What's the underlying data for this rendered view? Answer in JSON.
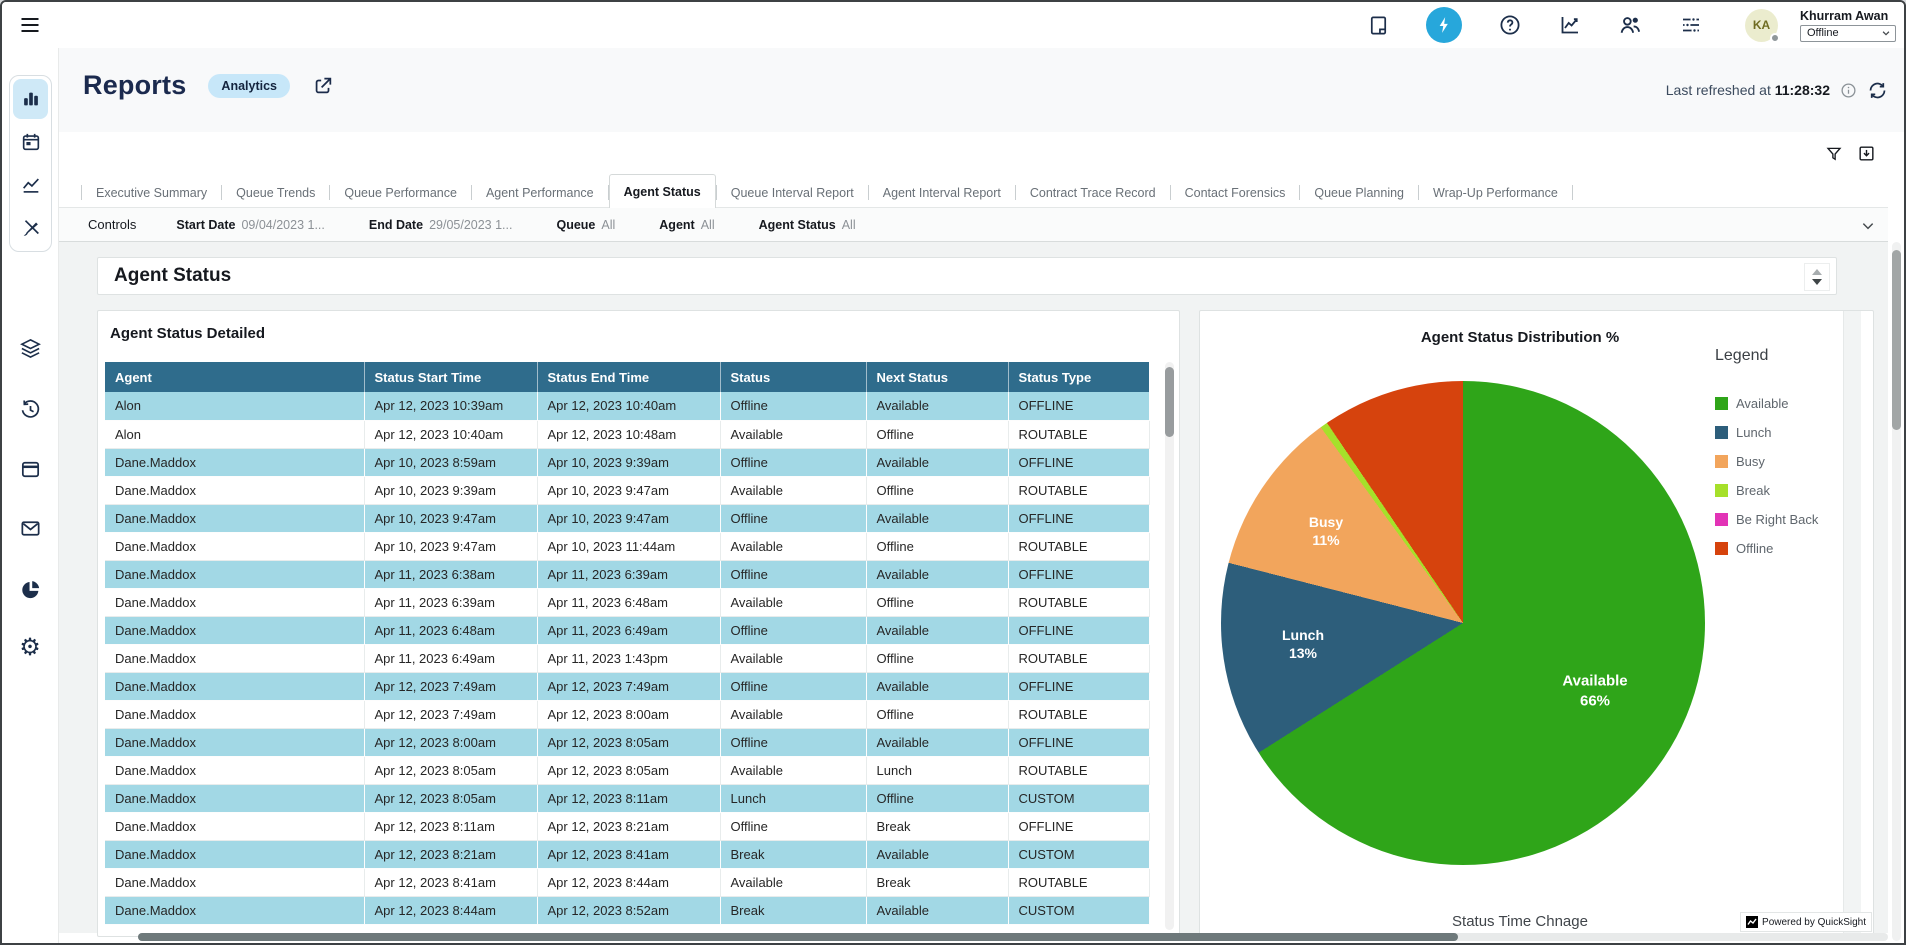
{
  "topbar": {
    "icons": [
      "notes",
      "flash",
      "help",
      "metrics",
      "users",
      "settings-sliders"
    ],
    "user": {
      "initials": "KA",
      "name": "Khurram Awan",
      "status": "Offline"
    }
  },
  "sidebar": {
    "icons": [
      "bar-chart",
      "calendar",
      "line-chart",
      "design-tools",
      "layers",
      "history",
      "browser-window",
      "mail",
      "pie-chart",
      "settings-gear"
    ],
    "active_icon": "bar-chart"
  },
  "header": {
    "title": "Reports",
    "badge": "Analytics",
    "last_refreshed_label": "Last refreshed at",
    "last_refreshed_time": "11:28:32"
  },
  "tabs": {
    "active_index": 4,
    "items": [
      "Executive Summary",
      "Queue Trends",
      "Queue Performance",
      "Agent Performance",
      "Agent Status",
      "Queue Interval Report",
      "Agent Interval Report",
      "Contract Trace Record",
      "Contact Forensics",
      "Queue Planning",
      "Wrap-Up Performance"
    ]
  },
  "controls": {
    "label": "Controls",
    "filters": [
      {
        "label": "Start Date",
        "value": "09/04/2023 1..."
      },
      {
        "label": "End Date",
        "value": "29/05/2023 1..."
      },
      {
        "label": "Queue",
        "value": "All"
      },
      {
        "label": "Agent",
        "value": "All"
      },
      {
        "label": "Agent Status",
        "value": "All"
      }
    ]
  },
  "section": {
    "title": "Agent Status"
  },
  "table_panel": {
    "title": "Agent Status Detailed",
    "columns": [
      "Agent",
      "Status Start Time",
      "Status End Time",
      "Status",
      "Next Status",
      "Status Type"
    ],
    "rows": [
      [
        "Alon",
        "Apr 12, 2023 10:39am",
        "Apr 12, 2023 10:40am",
        "Offline",
        "Available",
        "OFFLINE"
      ],
      [
        "Alon",
        "Apr 12, 2023 10:40am",
        "Apr 12, 2023 10:48am",
        "Available",
        "Offline",
        "ROUTABLE"
      ],
      [
        "Dane.Maddox",
        "Apr 10, 2023 8:59am",
        "Apr 10, 2023 9:39am",
        "Offline",
        "Available",
        "OFFLINE"
      ],
      [
        "Dane.Maddox",
        "Apr 10, 2023 9:39am",
        "Apr 10, 2023 9:47am",
        "Available",
        "Offline",
        "ROUTABLE"
      ],
      [
        "Dane.Maddox",
        "Apr 10, 2023 9:47am",
        "Apr 10, 2023 9:47am",
        "Offline",
        "Available",
        "OFFLINE"
      ],
      [
        "Dane.Maddox",
        "Apr 10, 2023 9:47am",
        "Apr 10, 2023 11:44am",
        "Available",
        "Offline",
        "ROUTABLE"
      ],
      [
        "Dane.Maddox",
        "Apr 11, 2023 6:38am",
        "Apr 11, 2023 6:39am",
        "Offline",
        "Available",
        "OFFLINE"
      ],
      [
        "Dane.Maddox",
        "Apr 11, 2023 6:39am",
        "Apr 11, 2023 6:48am",
        "Available",
        "Offline",
        "ROUTABLE"
      ],
      [
        "Dane.Maddox",
        "Apr 11, 2023 6:48am",
        "Apr 11, 2023 6:49am",
        "Offline",
        "Available",
        "OFFLINE"
      ],
      [
        "Dane.Maddox",
        "Apr 11, 2023 6:49am",
        "Apr 11, 2023 1:43pm",
        "Available",
        "Offline",
        "ROUTABLE"
      ],
      [
        "Dane.Maddox",
        "Apr 12, 2023 7:49am",
        "Apr 12, 2023 7:49am",
        "Offline",
        "Available",
        "OFFLINE"
      ],
      [
        "Dane.Maddox",
        "Apr 12, 2023 7:49am",
        "Apr 12, 2023 8:00am",
        "Available",
        "Offline",
        "ROUTABLE"
      ],
      [
        "Dane.Maddox",
        "Apr 12, 2023 8:00am",
        "Apr 12, 2023 8:05am",
        "Offline",
        "Available",
        "OFFLINE"
      ],
      [
        "Dane.Maddox",
        "Apr 12, 2023 8:05am",
        "Apr 12, 2023 8:05am",
        "Available",
        "Lunch",
        "ROUTABLE"
      ],
      [
        "Dane.Maddox",
        "Apr 12, 2023 8:05am",
        "Apr 12, 2023 8:11am",
        "Lunch",
        "Offline",
        "CUSTOM"
      ],
      [
        "Dane.Maddox",
        "Apr 12, 2023 8:11am",
        "Apr 12, 2023 8:21am",
        "Offline",
        "Break",
        "OFFLINE"
      ],
      [
        "Dane.Maddox",
        "Apr 12, 2023 8:21am",
        "Apr 12, 2023 8:41am",
        "Break",
        "Available",
        "CUSTOM"
      ],
      [
        "Dane.Maddox",
        "Apr 12, 2023 8:41am",
        "Apr 12, 2023 8:44am",
        "Available",
        "Break",
        "ROUTABLE"
      ],
      [
        "Dane.Maddox",
        "Apr 12, 2023 8:44am",
        "Apr 12, 2023 8:52am",
        "Break",
        "Available",
        "CUSTOM"
      ]
    ]
  },
  "chart_data": {
    "type": "pie",
    "title": "Agent Status Distribution %",
    "legend_title": "Legend",
    "legend_position": "right",
    "categories": [
      "Available",
      "Lunch",
      "Busy",
      "Break",
      "Be Right Back",
      "Offline"
    ],
    "values": [
      66,
      13,
      11,
      0.5,
      0,
      9.5
    ],
    "colors": [
      "#2fa519",
      "#2d5e7b",
      "#f2a55c",
      "#a6e02a",
      "#e233b6",
      "#d6430d"
    ],
    "start_angle_deg": 0,
    "direction": "clockwise",
    "slice_labels": [
      {
        "category": "Available",
        "line1": "Available",
        "line2": "66%"
      },
      {
        "category": "Lunch",
        "line1": "Lunch",
        "line2": "13%"
      },
      {
        "category": "Busy",
        "line1": "Busy",
        "line2": "11%"
      }
    ]
  },
  "footer": {
    "next_section_title": "Status Time Chnage",
    "powered_by": "Powered by QuickSight"
  }
}
